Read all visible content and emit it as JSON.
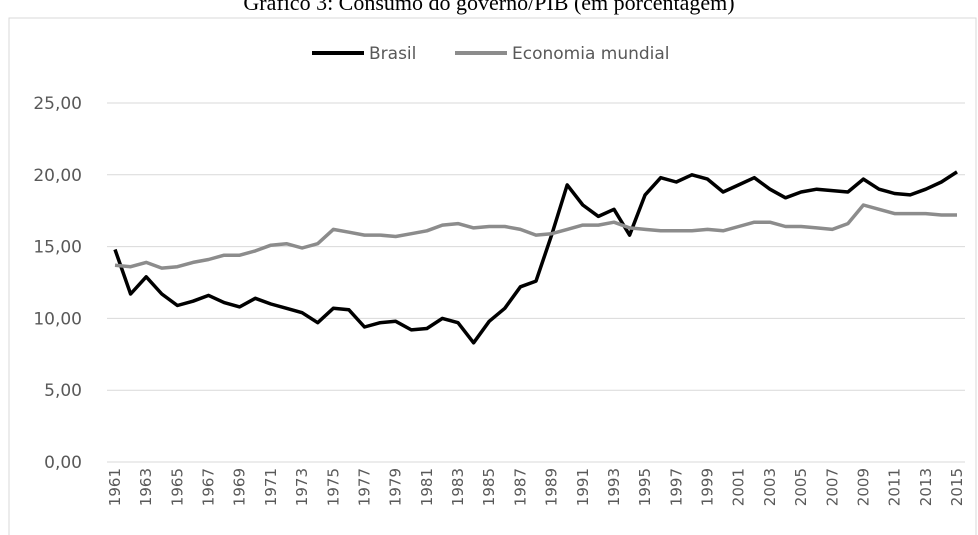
{
  "chart_data": {
    "type": "line",
    "title": "Gráfico 3: Consumo do governo/PIB (em porcentagem)",
    "categories": [
      "1961",
      null,
      "1963",
      null,
      "1965",
      null,
      "1967",
      null,
      "1969",
      null,
      "1971",
      null,
      "1973",
      null,
      "1975",
      null,
      "1977",
      null,
      "1979",
      null,
      "1981",
      null,
      "1983",
      null,
      "1985",
      null,
      "1987",
      null,
      "1989",
      null,
      "1991",
      null,
      "1993",
      null,
      "1995",
      null,
      "1997",
      null,
      "1999",
      null,
      "2001",
      null,
      "2003",
      null,
      "2005",
      null,
      "2007",
      null,
      "2009",
      null,
      "2011",
      null,
      "2013",
      null,
      "2015"
    ],
    "series": [
      {
        "name": "Brasil",
        "color": "#000000",
        "values": [
          14.8,
          11.7,
          12.9,
          11.7,
          10.9,
          11.2,
          11.6,
          11.1,
          10.8,
          11.4,
          11.0,
          10.7,
          10.4,
          9.7,
          10.7,
          10.6,
          9.4,
          9.7,
          9.8,
          9.2,
          9.3,
          10.0,
          9.7,
          8.3,
          9.8,
          10.7,
          12.2,
          12.6,
          15.8,
          19.3,
          17.9,
          17.1,
          17.6,
          15.8,
          18.6,
          19.8,
          19.5,
          20.0,
          19.7,
          18.8,
          19.3,
          19.8,
          19.0,
          18.4,
          18.8,
          19.0,
          18.9,
          18.8,
          19.7,
          19.0,
          18.7,
          18.6,
          19.0,
          19.5,
          20.2
        ]
      },
      {
        "name": "Economia mundial",
        "color": "#8c8c8c",
        "values": [
          13.7,
          13.6,
          13.9,
          13.5,
          13.6,
          13.9,
          14.1,
          14.4,
          14.4,
          14.7,
          15.1,
          15.2,
          14.9,
          15.2,
          16.2,
          16.0,
          15.8,
          15.8,
          15.7,
          15.9,
          16.1,
          16.5,
          16.6,
          16.3,
          16.4,
          16.4,
          16.2,
          15.8,
          15.9,
          16.2,
          16.5,
          16.5,
          16.7,
          16.3,
          16.2,
          16.1,
          16.1,
          16.1,
          16.2,
          16.1,
          16.4,
          16.7,
          16.7,
          16.4,
          16.4,
          16.3,
          16.2,
          16.6,
          17.9,
          17.6,
          17.3,
          17.3,
          17.3,
          17.2,
          17.2
        ]
      }
    ],
    "ylim": [
      0,
      25
    ],
    "yticks": [
      {
        "value": 0,
        "label": "0,00"
      },
      {
        "value": 5,
        "label": "5,00"
      },
      {
        "value": 10,
        "label": "10,00"
      },
      {
        "value": 15,
        "label": "15,00"
      },
      {
        "value": 20,
        "label": "20,00"
      },
      {
        "value": 25,
        "label": "25,00"
      }
    ],
    "grid": true,
    "legend": "top"
  }
}
